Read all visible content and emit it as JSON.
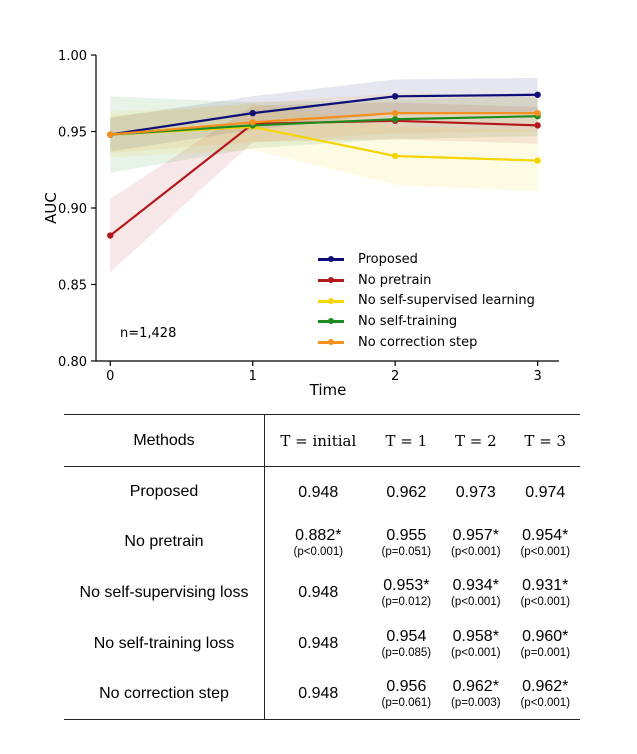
{
  "chart_data": {
    "type": "line",
    "xlabel": "Time",
    "ylabel": "AUC",
    "x": [
      0,
      1,
      2,
      3
    ],
    "xticks": [
      "0",
      "1",
      "2",
      "3"
    ],
    "yticks": [
      "0.80",
      "0.85",
      "0.90",
      "0.95",
      "1.00"
    ],
    "ylim": [
      0.8,
      1.0
    ],
    "xlim": [
      -0.1,
      3.15
    ],
    "legend_position": "lower-center",
    "annotation": "n=1,428",
    "series": [
      {
        "name": "Proposed",
        "color": "#0e0e78",
        "values": [
          0.948,
          0.962,
          0.973,
          0.974
        ],
        "ci_low": [
          0.937,
          0.951,
          0.962,
          0.963
        ],
        "ci_high": [
          0.959,
          0.973,
          0.984,
          0.985
        ]
      },
      {
        "name": "No pretrain",
        "color": "#b5181b",
        "values": [
          0.882,
          0.955,
          0.957,
          0.954
        ],
        "ci_low": [
          0.858,
          0.943,
          0.945,
          0.942
        ],
        "ci_high": [
          0.906,
          0.967,
          0.969,
          0.966
        ]
      },
      {
        "name": "No self-supervised learning",
        "color": "#f5d400",
        "values": [
          0.948,
          0.953,
          0.934,
          0.931
        ],
        "ci_low": [
          0.933,
          0.938,
          0.915,
          0.911
        ],
        "ci_high": [
          0.963,
          0.968,
          0.953,
          0.951
        ]
      },
      {
        "name": "No self-training",
        "color": "#1f8a1f",
        "values": [
          0.948,
          0.954,
          0.958,
          0.96
        ],
        "ci_low": [
          0.923,
          0.939,
          0.945,
          0.947
        ],
        "ci_high": [
          0.973,
          0.969,
          0.971,
          0.973
        ]
      },
      {
        "name": "No correction step",
        "color": "#f5901e",
        "values": [
          0.948,
          0.956,
          0.962,
          0.962
        ],
        "ci_low": [
          0.936,
          0.943,
          0.949,
          0.95
        ],
        "ci_high": [
          0.96,
          0.969,
          0.975,
          0.974
        ]
      }
    ]
  },
  "table": {
    "headers": [
      "Methods",
      "T = initial",
      "T = 1",
      "T = 2",
      "T = 3"
    ],
    "rows": [
      {
        "method": "Proposed",
        "cells": [
          {
            "value": "0.948",
            "p": ""
          },
          {
            "value": "0.962",
            "p": ""
          },
          {
            "value": "0.973",
            "p": ""
          },
          {
            "value": "0.974",
            "p": ""
          }
        ]
      },
      {
        "method": "No pretrain",
        "cells": [
          {
            "value": "0.882*",
            "p": "(p<0.001)"
          },
          {
            "value": "0.955",
            "p": "(p=0.051)"
          },
          {
            "value": "0.957*",
            "p": "(p<0.001)"
          },
          {
            "value": "0.954*",
            "p": "(p<0.001)"
          }
        ]
      },
      {
        "method": "No self-supervising loss",
        "cells": [
          {
            "value": "0.948",
            "p": ""
          },
          {
            "value": "0.953*",
            "p": "(p=0.012)"
          },
          {
            "value": "0.934*",
            "p": "(p<0.001)"
          },
          {
            "value": "0.931*",
            "p": "(p<0.001)"
          }
        ]
      },
      {
        "method": "No self-training loss",
        "cells": [
          {
            "value": "0.948",
            "p": ""
          },
          {
            "value": "0.954",
            "p": "(p=0.085)"
          },
          {
            "value": "0.958*",
            "p": "(p<0.001)"
          },
          {
            "value": "0.960*",
            "p": "(p=0.001)"
          }
        ]
      },
      {
        "method": "No correction step",
        "cells": [
          {
            "value": "0.948",
            "p": ""
          },
          {
            "value": "0.956",
            "p": "(p=0.061)"
          },
          {
            "value": "0.962*",
            "p": "(p=0.003)"
          },
          {
            "value": "0.962*",
            "p": "(p<0.001)"
          }
        ]
      }
    ]
  }
}
